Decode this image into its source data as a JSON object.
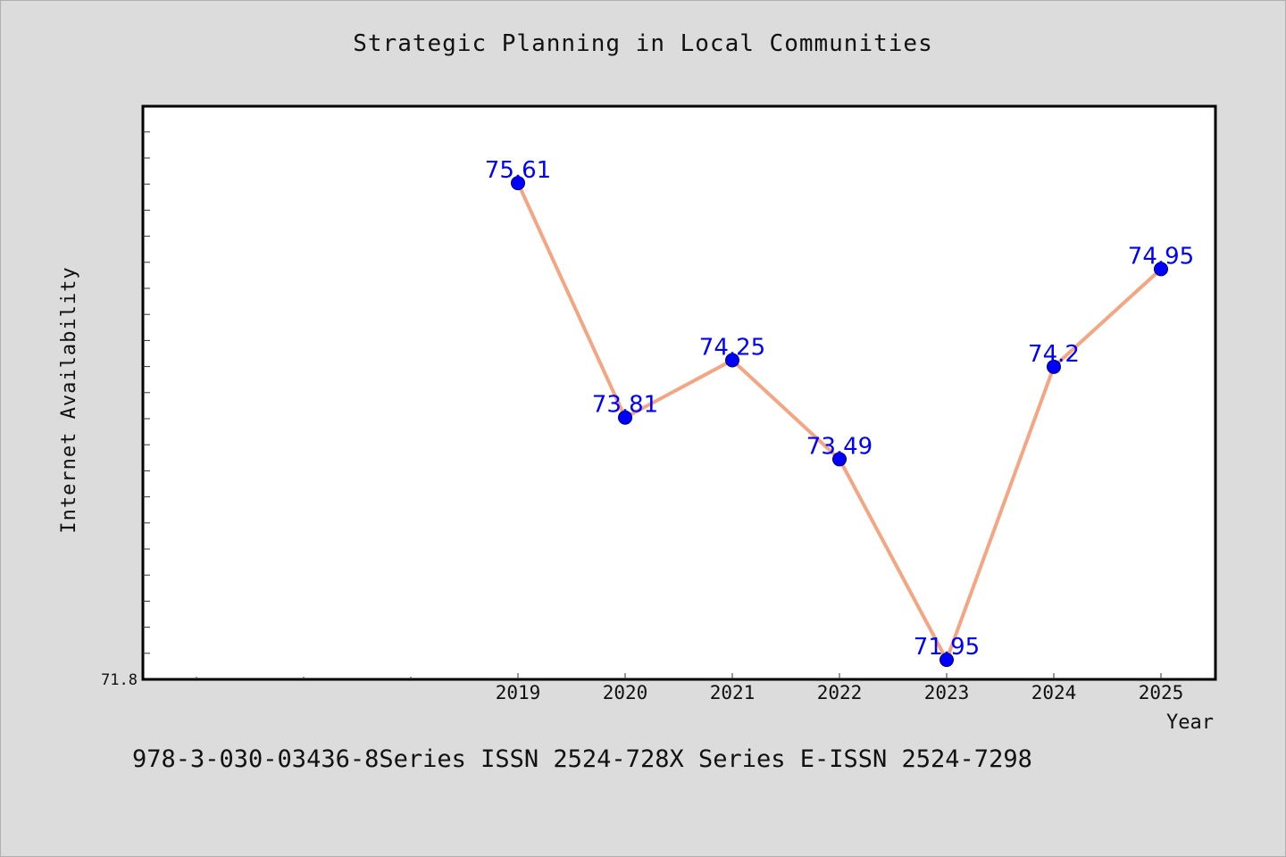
{
  "chart_data": {
    "type": "line",
    "title": "Strategic Planning in Local Communities",
    "xlabel": "Year",
    "ylabel": "Internet Availability",
    "categories": [
      "2019",
      "2020",
      "2021",
      "2022",
      "2023",
      "2024",
      "2025"
    ],
    "series": [
      {
        "values": [
          75.61,
          73.81,
          74.25,
          73.49,
          71.95,
          74.2,
          74.95
        ],
        "data_labels": [
          "75.61",
          "73.81",
          "74.25",
          "73.49",
          "71.95",
          "74.2",
          "74.95"
        ],
        "line_color": "#f4a582",
        "marker_color": "#0000ff",
        "label_color": "#0000ff"
      }
    ],
    "y_tick_labels": [
      "71.8"
    ],
    "ylim": [
      71.8,
      76.2
    ],
    "grid": false
  },
  "footer": "978-3-030-03436-8Series ISSN 2524-728X Series E-ISSN 2524-7298"
}
